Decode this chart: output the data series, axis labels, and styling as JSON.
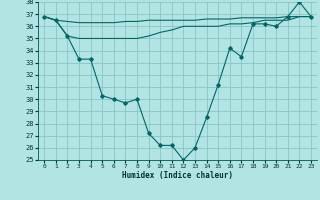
{
  "xlabel": "Humidex (Indice chaleur)",
  "background_color": "#b2e4e4",
  "grid_color": "#80c0c0",
  "line_color": "#006666",
  "x": [
    0,
    1,
    2,
    3,
    4,
    5,
    6,
    7,
    8,
    9,
    10,
    11,
    12,
    13,
    14,
    15,
    16,
    17,
    18,
    19,
    20,
    21,
    22,
    23
  ],
  "line_flat": [
    36.8,
    36.5,
    36.4,
    36.3,
    36.3,
    36.3,
    36.3,
    36.4,
    36.4,
    36.5,
    36.5,
    36.5,
    36.5,
    36.5,
    36.6,
    36.6,
    36.6,
    36.7,
    36.7,
    36.7,
    36.7,
    36.8,
    36.8,
    36.8
  ],
  "line_mid": [
    36.8,
    36.5,
    35.2,
    35.0,
    35.0,
    35.0,
    35.0,
    35.0,
    35.0,
    35.2,
    35.5,
    35.7,
    36.0,
    36.0,
    36.0,
    36.0,
    36.2,
    36.2,
    36.3,
    36.5,
    36.5,
    36.5,
    36.8,
    36.8
  ],
  "line_main": [
    36.8,
    36.5,
    35.2,
    33.3,
    33.3,
    30.3,
    30.0,
    29.7,
    30.0,
    27.2,
    26.2,
    26.2,
    25.0,
    26.0,
    28.5,
    31.2,
    34.2,
    33.5,
    36.2,
    36.2,
    36.0,
    36.8,
    38.0,
    36.8
  ],
  "ylim": [
    25,
    38
  ],
  "yticks": [
    25,
    26,
    27,
    28,
    29,
    30,
    31,
    32,
    33,
    34,
    35,
    36,
    37,
    38
  ],
  "xticks": [
    0,
    1,
    2,
    3,
    4,
    5,
    6,
    7,
    8,
    9,
    10,
    11,
    12,
    13,
    14,
    15,
    16,
    17,
    18,
    19,
    20,
    21,
    22,
    23
  ],
  "figsize": [
    3.2,
    2.0
  ],
  "dpi": 100
}
